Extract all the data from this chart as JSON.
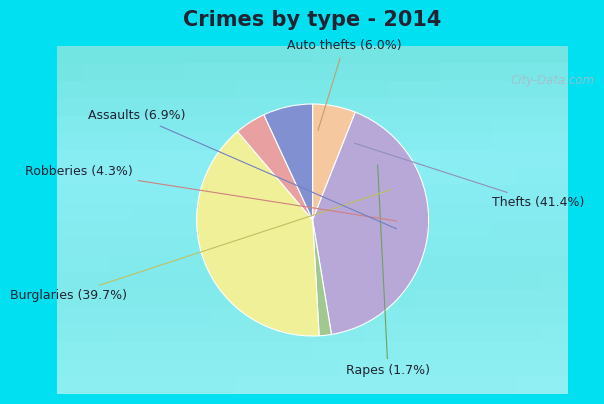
{
  "title": "Crimes by type - 2014",
  "slices": [
    {
      "label": "Auto thefts",
      "pct": 6.0,
      "color": "#f5c8a0"
    },
    {
      "label": "Thefts",
      "pct": 41.4,
      "color": "#b8a8d8"
    },
    {
      "label": "Rapes",
      "pct": 1.7,
      "color": "#a0c890"
    },
    {
      "label": "Burglaries",
      "pct": 39.7,
      "color": "#f0f098"
    },
    {
      "label": "Robberies",
      "pct": 4.3,
      "color": "#e8a0a0"
    },
    {
      "label": "Assaults",
      "pct": 6.9,
      "color": "#8090d0"
    }
  ],
  "background_top": "#00e0f0",
  "background_body_top": "#d0ece0",
  "background_body_bottom": "#e8f8f0",
  "watermark": "City-Data.com",
  "title_fontsize": 15,
  "label_fontsize": 9,
  "startangle": 90,
  "annotations": [
    {
      "label": "Auto thefts (6.0%)",
      "xt": 0.27,
      "yt": 1.5,
      "ha": "center"
    },
    {
      "label": "Thefts (41.4%)",
      "xt": 1.55,
      "yt": 0.15,
      "ha": "left"
    },
    {
      "label": "Rapes (1.7%)",
      "xt": 0.65,
      "yt": -1.3,
      "ha": "center"
    },
    {
      "label": "Burglaries (39.7%)",
      "xt": -1.6,
      "yt": -0.65,
      "ha": "right"
    },
    {
      "label": "Robberies (4.3%)",
      "xt": -1.55,
      "yt": 0.42,
      "ha": "right"
    },
    {
      "label": "Assaults (6.9%)",
      "xt": -1.1,
      "yt": 0.9,
      "ha": "right"
    }
  ]
}
